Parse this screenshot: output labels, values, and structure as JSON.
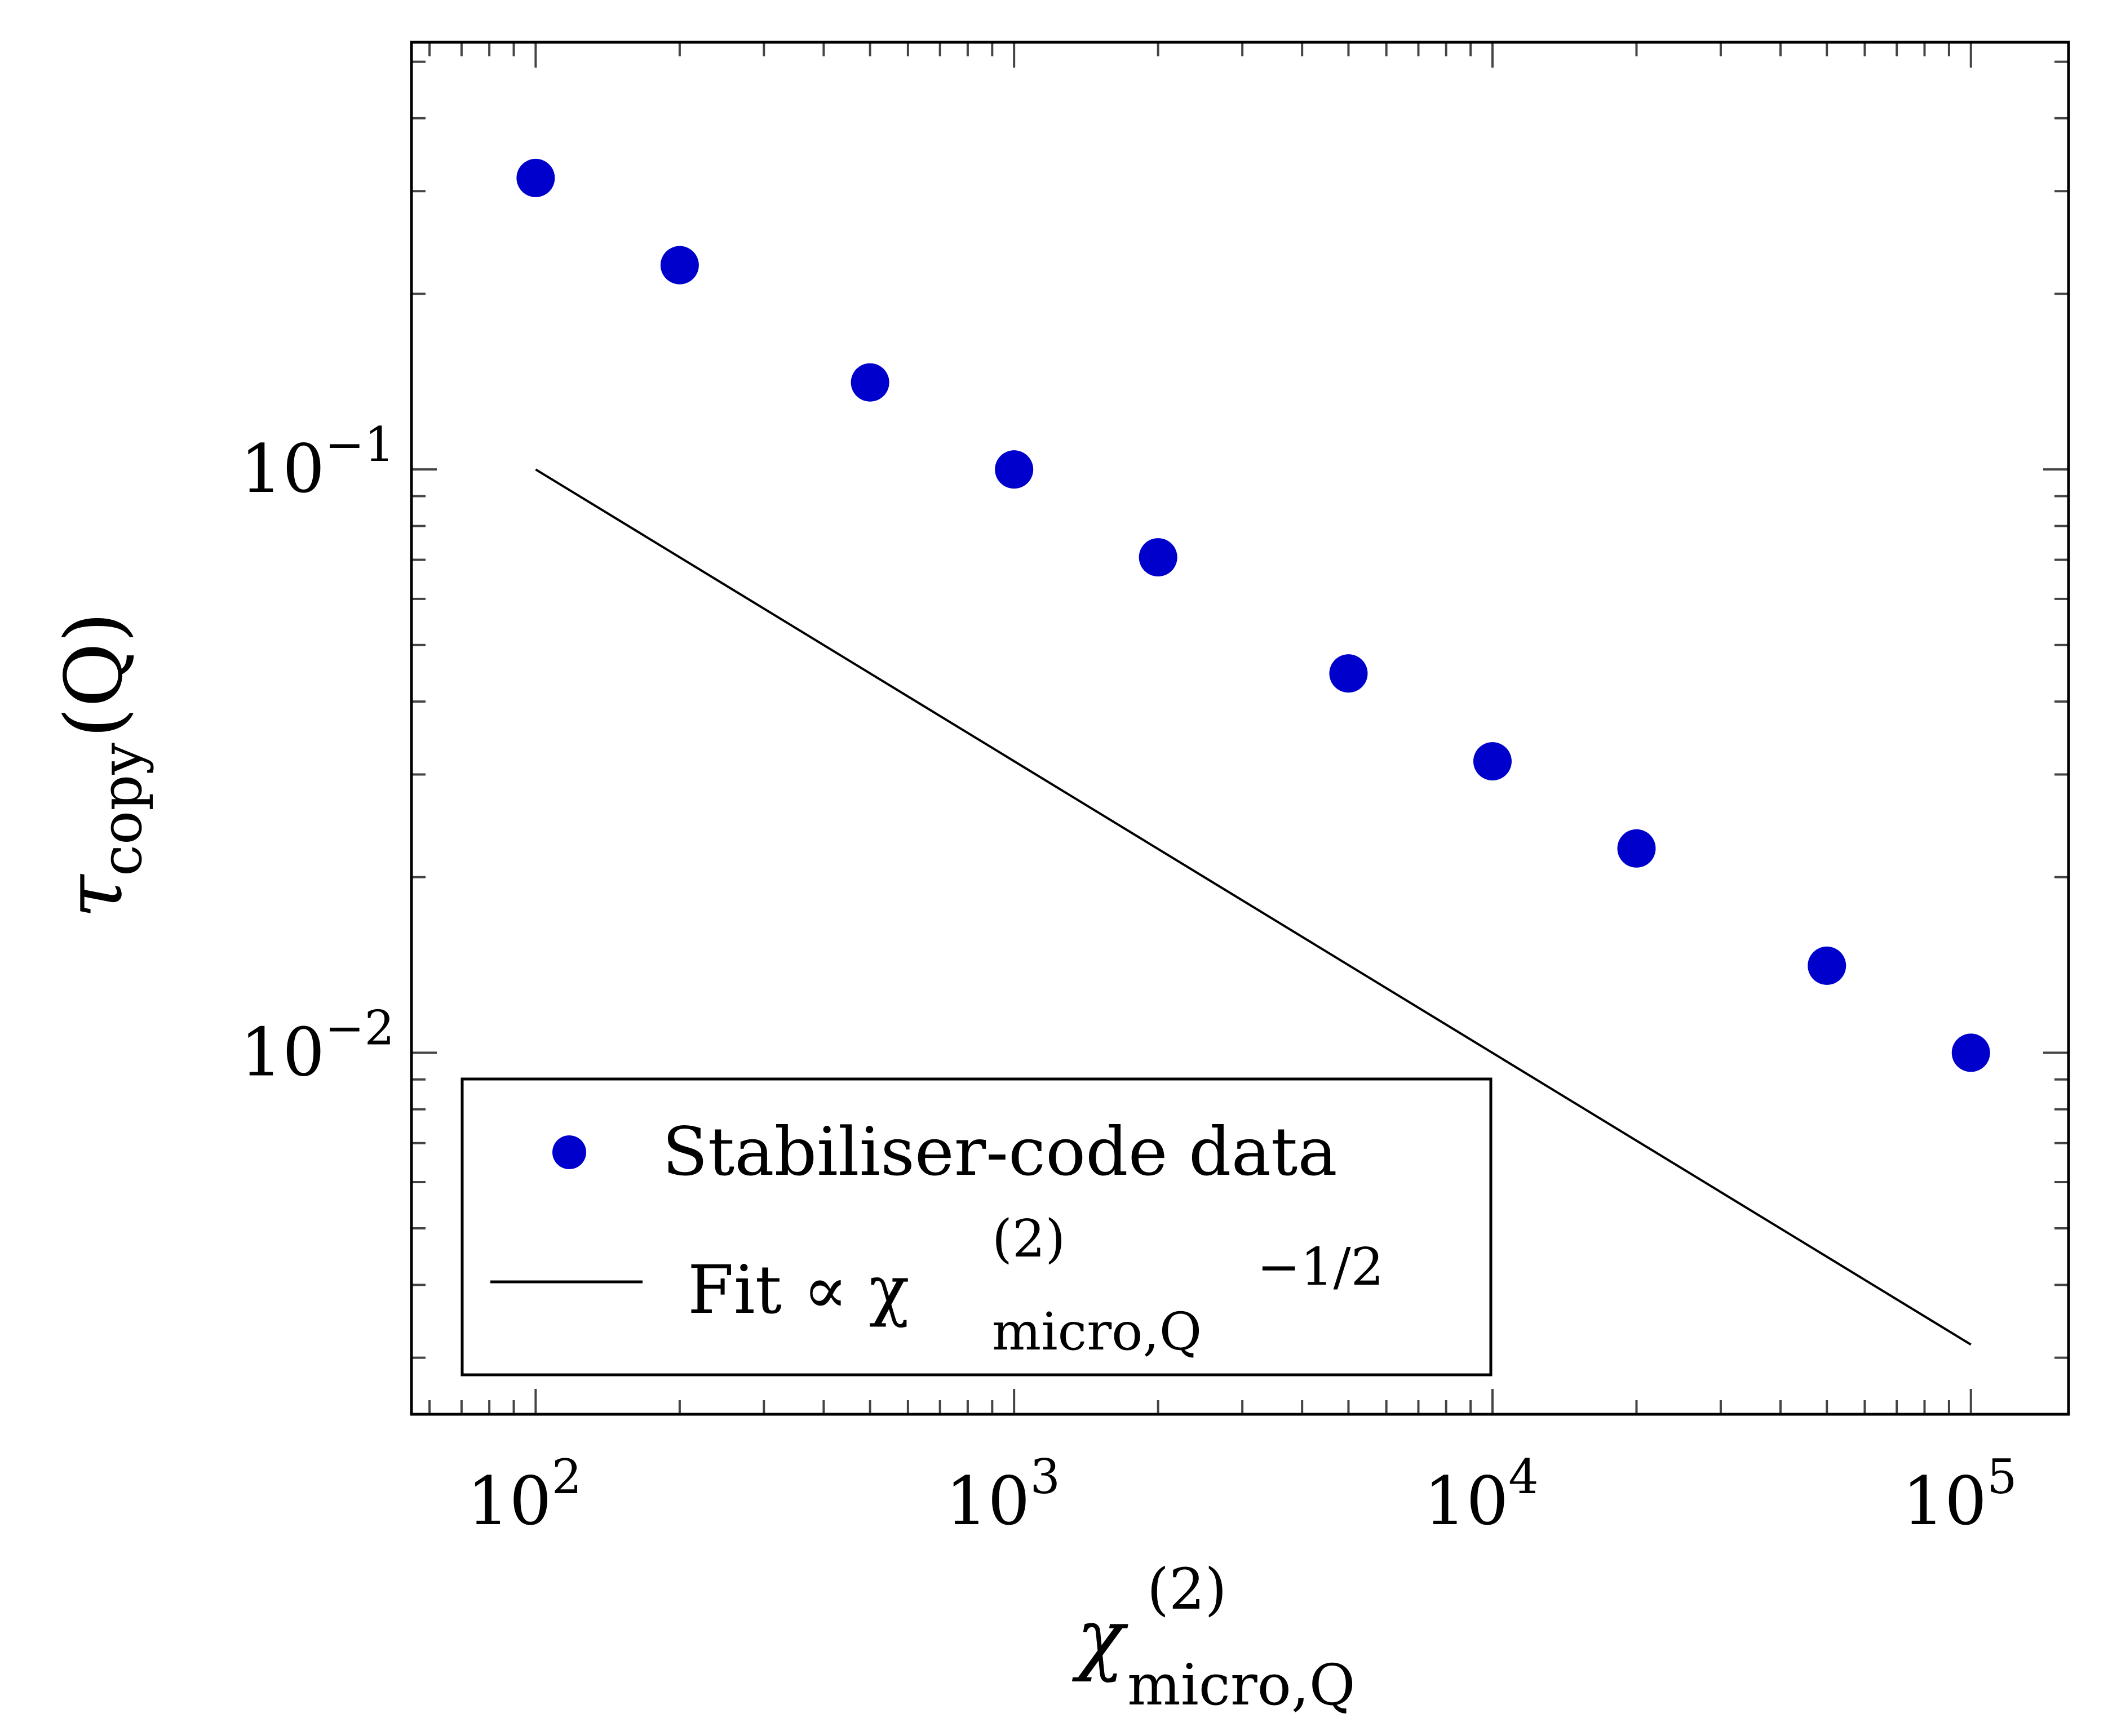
{
  "chart_data": {
    "type": "scatter",
    "xscale": "log",
    "yscale": "log",
    "xlim": [
      55,
      160000
    ],
    "ylim": [
      0.0024,
      0.54
    ],
    "x_ticks": [
      {
        "value": 100,
        "base": "10",
        "exp": "2"
      },
      {
        "value": 1000,
        "base": "10",
        "exp": "3"
      },
      {
        "value": 10000,
        "base": "10",
        "exp": "4"
      },
      {
        "value": 100000,
        "base": "10",
        "exp": "5"
      }
    ],
    "y_ticks": [
      {
        "value": 0.1,
        "base": "10",
        "exp": "−1"
      },
      {
        "value": 0.01,
        "base": "10",
        "exp": "−2"
      }
    ],
    "xlabel": {
      "symbol": "χ",
      "superscript": "(2)",
      "subscript": "micro,Q"
    },
    "ylabel": {
      "symbol": "τ",
      "subscript": "copy",
      "suffix": "(Q)"
    },
    "series": [
      {
        "name": "Stabiliser-code data",
        "kind": "scatter",
        "color": "#0000cc",
        "x": [
          100,
          200,
          500,
          1000,
          2000,
          5000,
          10000,
          20000,
          50000,
          100000
        ],
        "y": [
          0.316,
          0.224,
          0.141,
          0.1,
          0.0707,
          0.0447,
          0.0316,
          0.0224,
          0.0141,
          0.01
        ]
      },
      {
        "name": "Fit ∝ χ",
        "kind": "line",
        "color": "#000000",
        "exponent_label": "−1/2",
        "superscript": "(2)",
        "subscript": "micro,Q",
        "x": [
          100,
          100000
        ],
        "y": [
          0.1,
          0.00316
        ]
      }
    ],
    "legend": {
      "position": "bottom-left"
    },
    "grid": false
  }
}
